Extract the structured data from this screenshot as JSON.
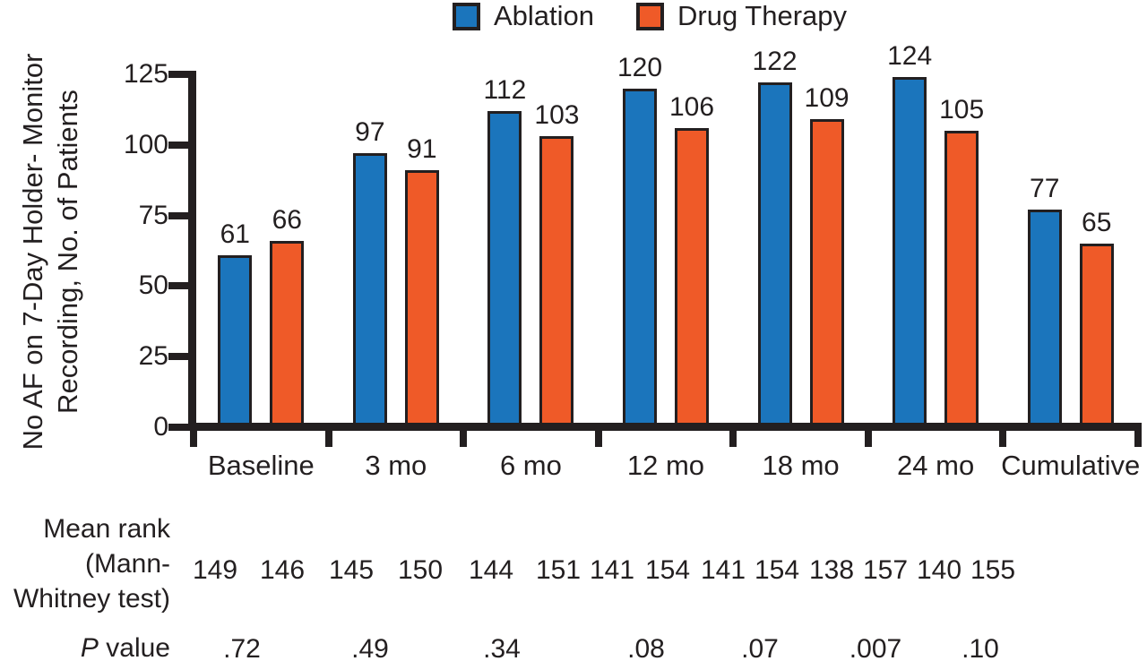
{
  "chart_data": {
    "type": "bar",
    "title": "",
    "categories": [
      "Baseline",
      "3 mo",
      "6 mo",
      "12 mo",
      "18 mo",
      "24 mo",
      "Cumulative"
    ],
    "series": [
      {
        "name": "Ablation",
        "color": "#1B75BC",
        "values": [
          61,
          97,
          112,
          120,
          122,
          124,
          77
        ]
      },
      {
        "name": "Drug Therapy",
        "color": "#EF5A28",
        "values": [
          66,
          91,
          103,
          106,
          109,
          105,
          65
        ]
      }
    ],
    "ylabel_line1": "No AF on 7-Day Holder- Monitor",
    "ylabel_line2": "Recording, No. of Patients",
    "yticks": [
      0,
      25,
      50,
      75,
      100,
      125
    ],
    "ylim": [
      0,
      125
    ],
    "grid": false,
    "legend_position": "top",
    "bar_outline_color": "#231F20",
    "text_color": "#231F20",
    "mean_rank": {
      "label_lines": [
        "Mean rank",
        "(Mann-",
        "Whitney test)"
      ],
      "ablation": [
        149,
        145,
        144,
        141,
        141,
        138,
        140
      ],
      "drug_therapy": [
        146,
        150,
        151,
        154,
        154,
        157,
        155
      ]
    },
    "p_value": {
      "label_italic": "P",
      "label_rest": " value",
      "values": [
        ".72",
        ".49",
        ".34",
        ".08",
        ".07",
        ".007",
        ".10"
      ]
    }
  }
}
